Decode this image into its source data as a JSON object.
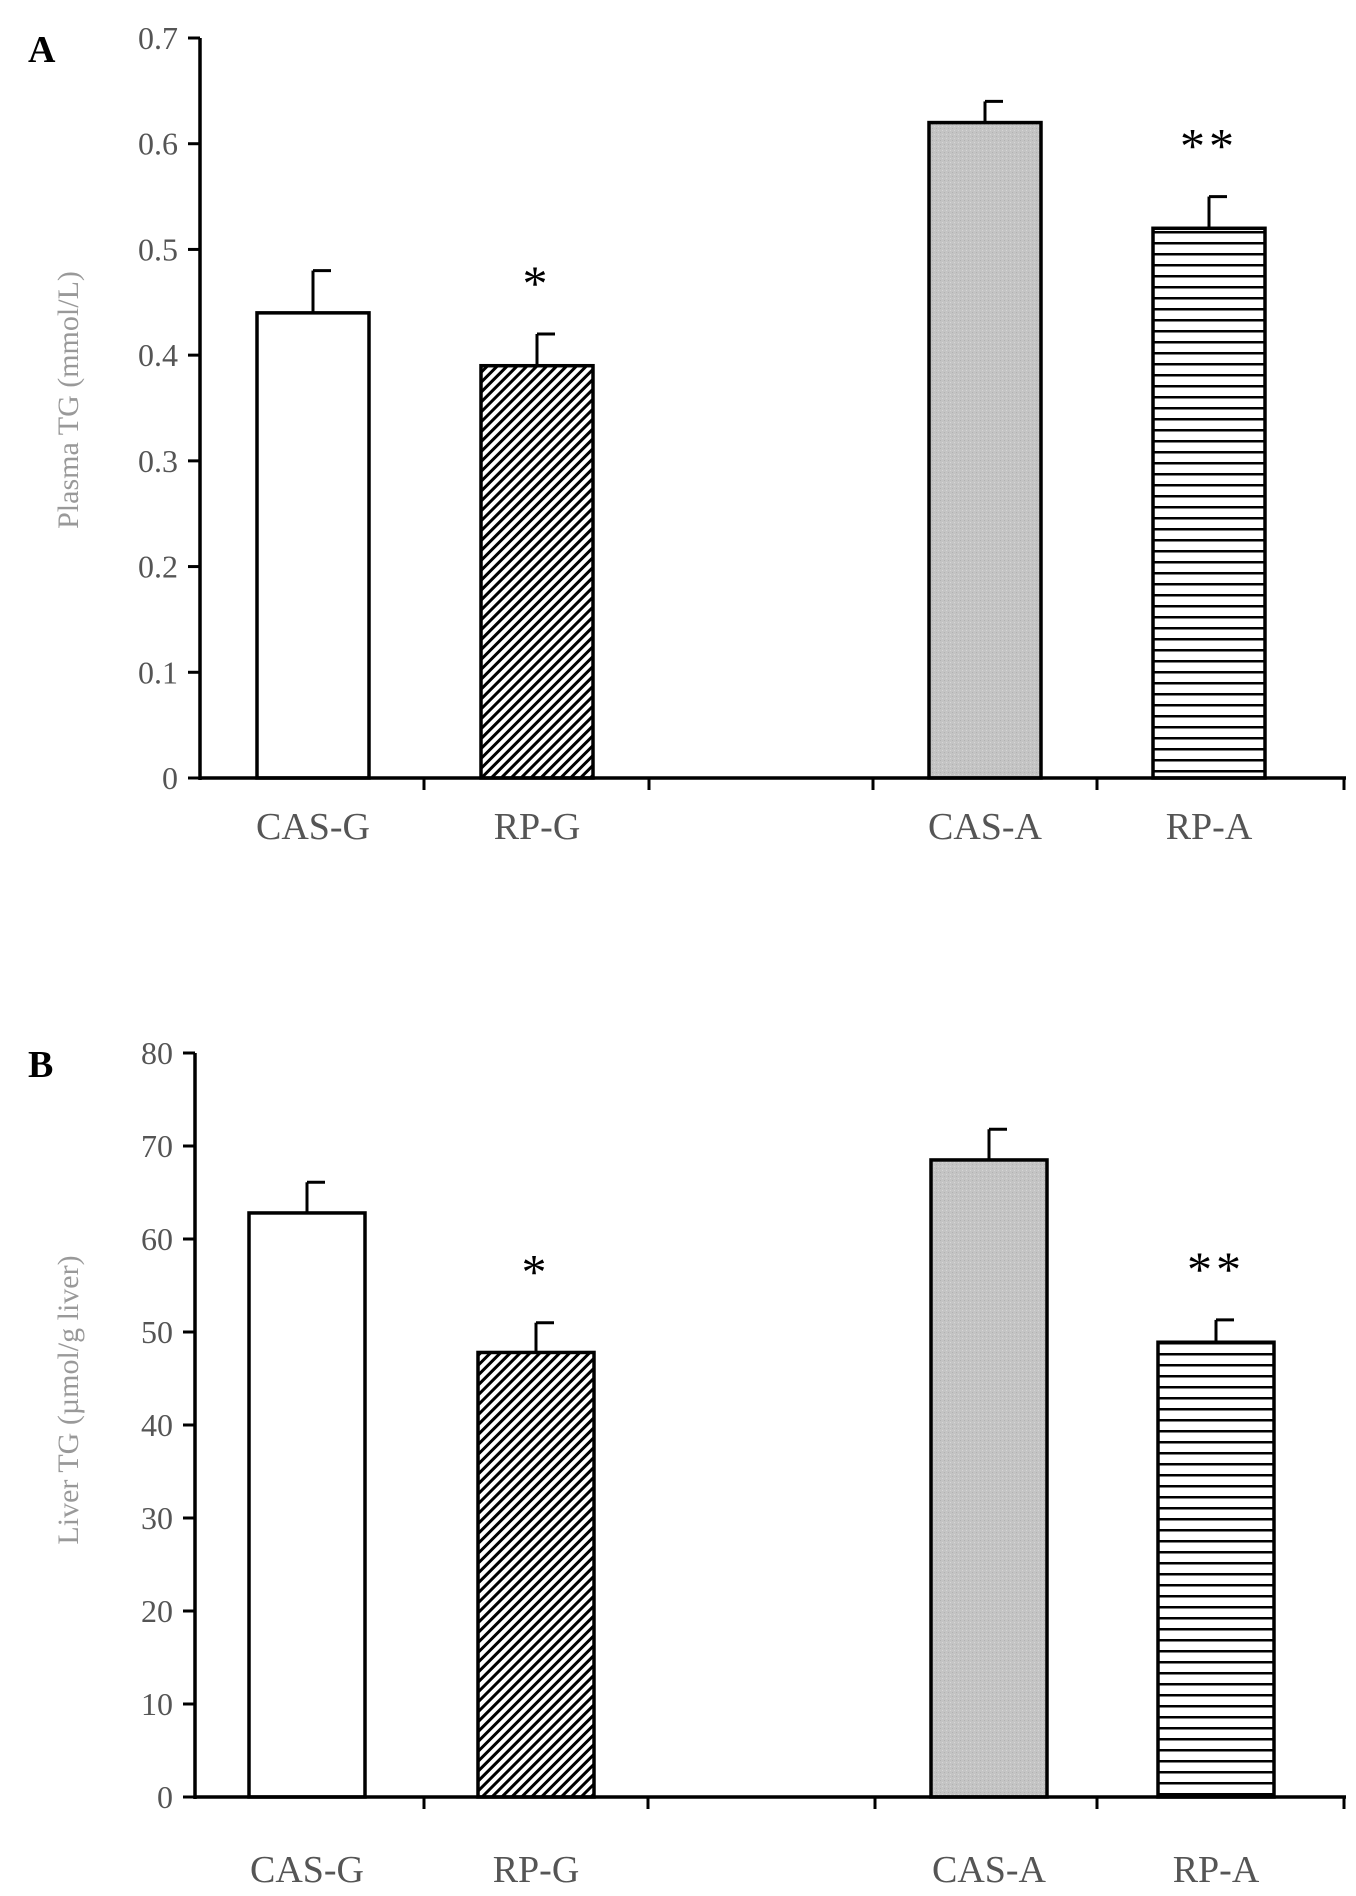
{
  "chart_data": [
    {
      "type": "bar",
      "panel_label": "A",
      "title": "",
      "xlabel": "",
      "ylabel": "Plasma TG (mmol/L)",
      "ylim": [
        0,
        0.7
      ],
      "yticks": [
        "0",
        "0.1",
        "0.2",
        "0.3",
        "0.4",
        "0.5",
        "0.6",
        "0.7"
      ],
      "categories": [
        "CAS-G",
        "RP-G",
        "CAS-A",
        "RP-A"
      ],
      "values": [
        0.44,
        0.39,
        0.62,
        0.52
      ],
      "errors": [
        0.04,
        0.03,
        0.02,
        0.03
      ],
      "significance": [
        "",
        "*",
        "",
        "**"
      ],
      "fills": [
        "white",
        "diagonal-hatch",
        "gray-dotted",
        "horizontal-stripes"
      ]
    },
    {
      "type": "bar",
      "panel_label": "B",
      "title": "",
      "xlabel": "",
      "ylabel": "Liver TG (µmol/g liver)",
      "ylim": [
        0,
        80
      ],
      "yticks": [
        "0",
        "10",
        "20",
        "30",
        "40",
        "50",
        "60",
        "70",
        "80"
      ],
      "categories": [
        "CAS-G",
        "RP-G",
        "CAS-A",
        "RP-A"
      ],
      "values": [
        62.8,
        47.8,
        68.5,
        48.9
      ],
      "errors": [
        3.3,
        3.2,
        3.3,
        2.4
      ],
      "significance": [
        "",
        "*",
        "",
        "**"
      ],
      "fills": [
        "white",
        "diagonal-hatch",
        "gray-dotted",
        "horizontal-stripes"
      ]
    }
  ],
  "colors": {
    "axis": "#000000",
    "label_text": "#555555",
    "ylabel_text": "#999999",
    "bar_gray": "#c4c4c4"
  }
}
